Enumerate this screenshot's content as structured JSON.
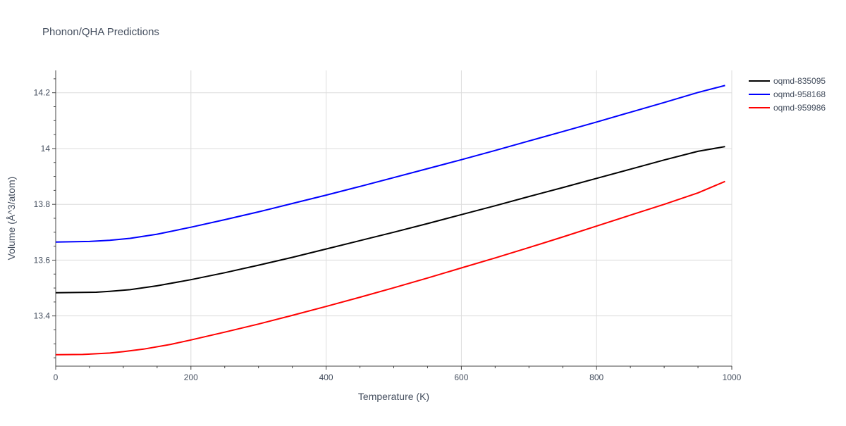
{
  "chart_data": {
    "type": "line",
    "title": "Phonon/QHA Predictions",
    "xlabel": "Temperature (K)",
    "ylabel": "Volume (Å^3/atom)",
    "xlim": [
      0,
      1000
    ],
    "ylim": [
      13.22,
      14.28
    ],
    "xticks": [
      0,
      200,
      400,
      600,
      800,
      1000
    ],
    "xtick_labels": [
      "0",
      "200",
      "400",
      "600",
      "800",
      "1000"
    ],
    "yticks": [
      13.4,
      13.6,
      13.8,
      14.0,
      14.2
    ],
    "ytick_labels": [
      "13.4",
      "13.6",
      "13.8",
      "14",
      "14.2"
    ],
    "grid": true,
    "legend_position": "top-right-outside",
    "series": [
      {
        "name": "oqmd-835095",
        "color": "#000000",
        "x": [
          0,
          30,
          60,
          80,
          110,
          150,
          200,
          250,
          300,
          350,
          400,
          450,
          500,
          550,
          600,
          650,
          700,
          750,
          800,
          850,
          900,
          950,
          990
        ],
        "y": [
          13.483,
          13.484,
          13.485,
          13.488,
          13.494,
          13.508,
          13.53,
          13.555,
          13.582,
          13.61,
          13.64,
          13.67,
          13.7,
          13.731,
          13.763,
          13.795,
          13.828,
          13.86,
          13.893,
          13.926,
          13.959,
          13.99,
          14.007
        ]
      },
      {
        "name": "oqmd-958168",
        "color": "#0000ff",
        "x": [
          0,
          50,
          80,
          110,
          150,
          200,
          250,
          300,
          350,
          400,
          450,
          500,
          550,
          600,
          650,
          700,
          750,
          800,
          850,
          900,
          950,
          990
        ],
        "y": [
          13.665,
          13.667,
          13.671,
          13.678,
          13.693,
          13.718,
          13.745,
          13.773,
          13.803,
          13.833,
          13.864,
          13.896,
          13.928,
          13.96,
          13.993,
          14.027,
          14.061,
          14.095,
          14.13,
          14.165,
          14.201,
          14.226
        ]
      },
      {
        "name": "oqmd-959986",
        "color": "#ff0000",
        "x": [
          0,
          40,
          80,
          100,
          130,
          170,
          200,
          250,
          300,
          350,
          400,
          450,
          500,
          550,
          600,
          650,
          700,
          750,
          800,
          850,
          900,
          950,
          990
        ],
        "y": [
          13.261,
          13.262,
          13.267,
          13.272,
          13.281,
          13.298,
          13.314,
          13.342,
          13.371,
          13.402,
          13.434,
          13.467,
          13.501,
          13.536,
          13.572,
          13.608,
          13.645,
          13.683,
          13.722,
          13.761,
          13.8,
          13.841,
          13.882
        ]
      }
    ]
  }
}
